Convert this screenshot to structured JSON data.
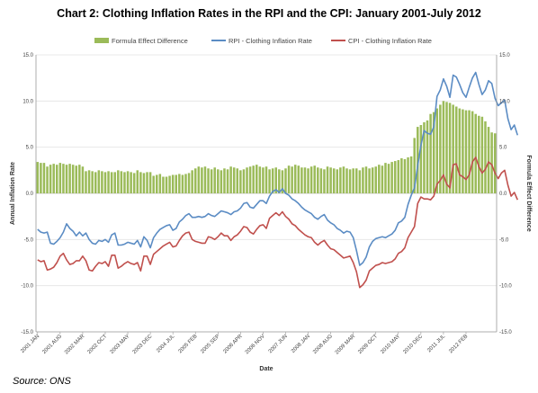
{
  "chart_data": {
    "type": "bar+line",
    "title": "Chart 2: Clothing Inflation Rates in the RPI and the CPI: January 2001-July 2012",
    "xlabel": "Date",
    "ylabel": "Annual Inflation Rate",
    "y2label": "Formula Effect Difference",
    "ylim": [
      -15,
      15
    ],
    "y2lim": [
      -15,
      15
    ],
    "yticks": [
      "-15.0",
      "-10.0",
      "-5.0",
      "0.0",
      "5.0",
      "10.0",
      "15.0"
    ],
    "x_tick_labels": [
      "2001 JAN",
      "2001 AUG",
      "2002 MAR",
      "2002 OCT",
      "2003 MAY",
      "2003 DEC",
      "2004 JUL",
      "2005 FEB",
      "2005 SEP",
      "2006 APR",
      "2006 NOV",
      "2007 JUN",
      "2008 JAN",
      "2008 AUG",
      "2009 MAR",
      "2009 OCT",
      "2010 MAY",
      "2010 DEC",
      "2011 JUL",
      "2012 FEB"
    ],
    "start": "2001-01",
    "grid": true,
    "legend_position": "top",
    "series": [
      {
        "name": "Formula Effect Difference",
        "kind": "bar",
        "axis": "right",
        "color": "#9bbb59",
        "values": [
          3.4,
          3.3,
          3.3,
          2.9,
          3.1,
          3.2,
          3.1,
          3.3,
          3.2,
          3.1,
          3.2,
          3.1,
          3.0,
          3.1,
          2.9,
          2.4,
          2.5,
          2.4,
          2.3,
          2.5,
          2.4,
          2.3,
          2.4,
          2.3,
          2.3,
          2.5,
          2.4,
          2.3,
          2.4,
          2.3,
          2.2,
          2.5,
          2.3,
          2.2,
          2.3,
          2.3,
          1.9,
          2.0,
          2.1,
          1.8,
          1.8,
          1.9,
          2.0,
          2.0,
          2.1,
          2.0,
          2.1,
          2.2,
          2.5,
          2.7,
          2.9,
          2.8,
          2.9,
          2.7,
          2.6,
          2.8,
          2.6,
          2.5,
          2.7,
          2.6,
          2.9,
          2.8,
          2.7,
          2.5,
          2.6,
          2.8,
          2.9,
          3.0,
          3.1,
          2.9,
          2.8,
          2.9,
          2.6,
          2.7,
          2.8,
          2.6,
          2.5,
          2.7,
          3.0,
          2.9,
          3.1,
          3.0,
          2.8,
          2.8,
          2.7,
          2.9,
          3.0,
          2.8,
          2.7,
          2.6,
          2.9,
          2.8,
          2.7,
          2.6,
          2.8,
          2.9,
          2.7,
          2.6,
          2.7,
          2.7,
          2.5,
          2.8,
          2.9,
          2.7,
          2.8,
          2.9,
          3.1,
          3.0,
          3.3,
          3.2,
          3.4,
          3.5,
          3.6,
          3.8,
          3.7,
          3.9,
          4.0,
          6.0,
          7.2,
          7.4,
          7.7,
          7.9,
          8.6,
          8.8,
          9.2,
          9.6,
          10.0,
          9.9,
          9.8,
          9.6,
          9.4,
          9.2,
          9.1,
          9.0,
          9.0,
          8.9,
          8.6,
          8.4,
          8.3,
          7.8,
          7.2,
          6.6,
          6.5
        ]
      },
      {
        "name": "RPI - Clothing Inflation Rate",
        "kind": "line",
        "axis": "left",
        "color": "#5b8cc4",
        "values": [
          -3.9,
          -4.2,
          -4.3,
          -4.2,
          -5.4,
          -5.5,
          -5.2,
          -4.8,
          -4.2,
          -3.3,
          -3.8,
          -4.1,
          -4.6,
          -4.2,
          -4.6,
          -4.3,
          -5.0,
          -5.4,
          -5.5,
          -5.1,
          -5.2,
          -5.0,
          -5.3,
          -4.5,
          -4.3,
          -5.6,
          -5.6,
          -5.5,
          -5.3,
          -5.4,
          -5.5,
          -5.1,
          -5.8,
          -4.7,
          -5.1,
          -5.9,
          -4.8,
          -4.3,
          -3.9,
          -3.7,
          -3.5,
          -3.4,
          -4.0,
          -3.8,
          -3.1,
          -2.8,
          -2.4,
          -2.2,
          -2.6,
          -2.6,
          -2.5,
          -2.6,
          -2.5,
          -2.2,
          -2.4,
          -2.5,
          -2.2,
          -1.9,
          -2.0,
          -2.1,
          -2.3,
          -2.0,
          -1.9,
          -1.6,
          -1.1,
          -1.0,
          -1.5,
          -1.6,
          -1.2,
          -0.8,
          -0.8,
          -1.1,
          -0.3,
          0.2,
          0.4,
          0.1,
          0.5,
          0.0,
          -0.2,
          -0.6,
          -0.8,
          -1.1,
          -1.5,
          -1.8,
          -2.0,
          -2.2,
          -2.6,
          -2.8,
          -2.5,
          -2.3,
          -2.9,
          -3.2,
          -3.4,
          -3.8,
          -4.0,
          -4.3,
          -4.1,
          -4.2,
          -4.8,
          -6.2,
          -7.8,
          -7.5,
          -6.9,
          -5.8,
          -5.2,
          -4.9,
          -4.8,
          -4.7,
          -4.8,
          -4.6,
          -4.4,
          -4.0,
          -3.2,
          -3.0,
          -2.6,
          -1.2,
          -0.2,
          0.6,
          3.0,
          5.2,
          6.8,
          6.5,
          6.4,
          7.2,
          10.5,
          11.2,
          12.4,
          11.6,
          10.4,
          12.8,
          12.6,
          11.8,
          10.9,
          10.4,
          11.5,
          12.5,
          13.1,
          11.8,
          10.7,
          11.2,
          12.2,
          11.9,
          10.3,
          9.5,
          9.8,
          10.1,
          8.1,
          6.9,
          7.4,
          6.3
        ]
      },
      {
        "name": "CPI - Clothing Inflation Rate",
        "kind": "line",
        "axis": "left",
        "color": "#c0504d",
        "values": [
          -7.2,
          -7.4,
          -7.3,
          -8.3,
          -8.2,
          -8.0,
          -7.5,
          -6.8,
          -6.5,
          -7.2,
          -7.7,
          -7.6,
          -7.3,
          -7.3,
          -6.8,
          -7.3,
          -8.3,
          -8.4,
          -7.9,
          -7.5,
          -7.6,
          -7.4,
          -7.9,
          -6.7,
          -6.7,
          -8.1,
          -7.9,
          -7.6,
          -7.4,
          -7.6,
          -7.7,
          -7.5,
          -8.4,
          -6.8,
          -6.8,
          -7.7,
          -6.6,
          -6.3,
          -6.0,
          -5.7,
          -5.5,
          -5.3,
          -5.8,
          -5.7,
          -5.1,
          -4.6,
          -4.3,
          -4.2,
          -5.0,
          -5.2,
          -5.3,
          -5.4,
          -5.4,
          -4.7,
          -4.8,
          -5.0,
          -4.7,
          -4.3,
          -4.6,
          -4.6,
          -5.1,
          -4.7,
          -4.5,
          -4.1,
          -3.6,
          -3.7,
          -4.2,
          -4.4,
          -3.9,
          -3.5,
          -3.4,
          -3.8,
          -2.7,
          -2.4,
          -2.1,
          -2.4,
          -2.0,
          -2.5,
          -2.8,
          -3.3,
          -3.5,
          -3.9,
          -4.2,
          -4.5,
          -4.7,
          -4.8,
          -5.3,
          -5.6,
          -5.3,
          -5.1,
          -5.6,
          -6.0,
          -6.1,
          -6.4,
          -6.7,
          -7.0,
          -6.9,
          -6.8,
          -7.5,
          -8.5,
          -10.2,
          -9.9,
          -9.4,
          -8.4,
          -8.1,
          -7.8,
          -7.7,
          -7.5,
          -7.6,
          -7.5,
          -7.4,
          -7.1,
          -6.5,
          -6.3,
          -5.9,
          -4.8,
          -4.2,
          -3.6,
          -1.1,
          -0.4,
          -0.6,
          -0.6,
          -0.7,
          -0.3,
          1.0,
          1.4,
          2.0,
          1.0,
          0.6,
          3.1,
          3.2,
          2.0,
          1.8,
          1.5,
          2.0,
          3.4,
          3.9,
          2.9,
          2.2,
          2.6,
          3.4,
          3.1,
          2.2,
          1.6,
          2.2,
          2.5,
          0.9,
          -0.3,
          0.1,
          -0.7
        ]
      }
    ]
  },
  "source": "Source: ONS"
}
